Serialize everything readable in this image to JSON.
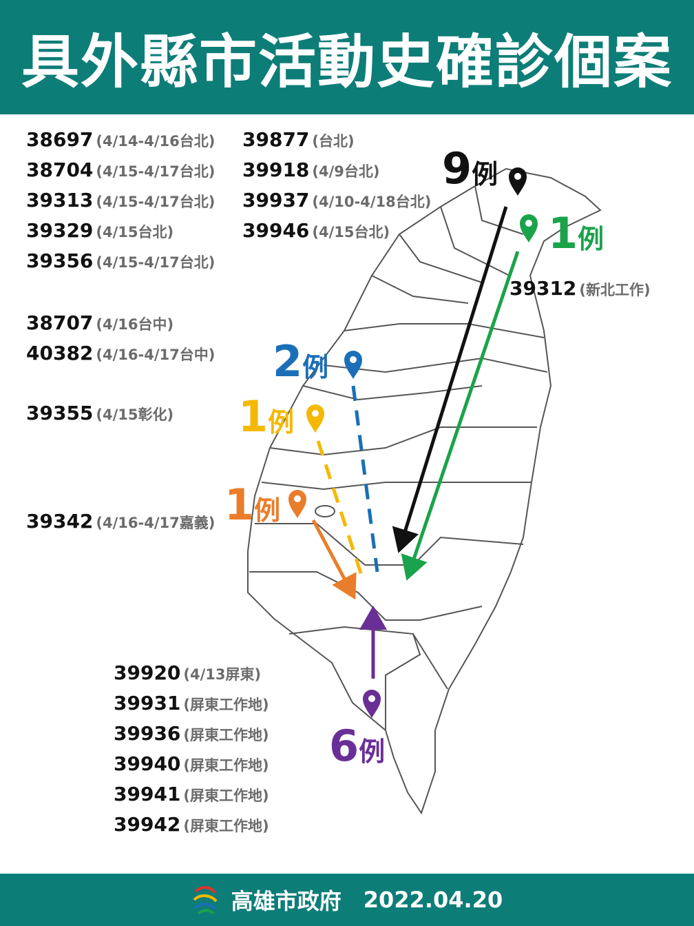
{
  "header": {
    "title": "具外縣市活動史確診個案"
  },
  "cases": [
    {
      "items": [
        {
          "id": "38697",
          "note": "(4/14-4/16台北)"
        },
        {
          "id": "38704",
          "note": "(4/15-4/17台北)"
        },
        {
          "id": "39313",
          "note": "(4/15-4/17台北)"
        },
        {
          "id": "39329",
          "note": "(4/15台北)"
        },
        {
          "id": "39356",
          "note": "(4/15-4/17台北)"
        }
      ]
    },
    {
      "items": [
        {
          "id": "39877",
          "note": "(台北)"
        },
        {
          "id": "39918",
          "note": "(4/9台北)"
        },
        {
          "id": "39937",
          "note": "(4/10-4/18台北)"
        },
        {
          "id": "39946",
          "note": "(4/15台北)"
        }
      ]
    },
    {
      "items": [
        {
          "id": "38707",
          "note": "(4/16台中)"
        },
        {
          "id": "40382",
          "note": "(4/16-4/17台中)"
        }
      ]
    },
    {
      "items": [
        {
          "id": "39355",
          "note": "(4/15彰化)"
        }
      ]
    },
    {
      "items": [
        {
          "id": "39342",
          "note": "(4/16-4/17嘉義)"
        }
      ]
    },
    {
      "items": [
        {
          "id": "39312",
          "note": "(新北工作)"
        }
      ]
    },
    {
      "items": [
        {
          "id": "39920",
          "note": "(4/13屏東)"
        },
        {
          "id": "39931",
          "note": "(屏東工作地)"
        },
        {
          "id": "39936",
          "note": "(屏東工作地)"
        },
        {
          "id": "39940",
          "note": "(屏東工作地)"
        },
        {
          "id": "39941",
          "note": "(屏東工作地)"
        },
        {
          "id": "39942",
          "note": "(屏東工作地)"
        }
      ]
    }
  ],
  "markers": [
    {
      "count": "9",
      "unit": "例",
      "color": "#111111"
    },
    {
      "count": "1",
      "unit": "例",
      "color": "#1aa34a"
    },
    {
      "count": "2",
      "unit": "例",
      "color": "#1a6fb8"
    },
    {
      "count": "1",
      "unit": "例",
      "color": "#f5b800"
    },
    {
      "count": "1",
      "unit": "例",
      "color": "#ea7d2b"
    },
    {
      "count": "6",
      "unit": "例",
      "color": "#6a2f96"
    }
  ],
  "footer": {
    "org": "高雄市政府",
    "date": "2022.04.20"
  }
}
